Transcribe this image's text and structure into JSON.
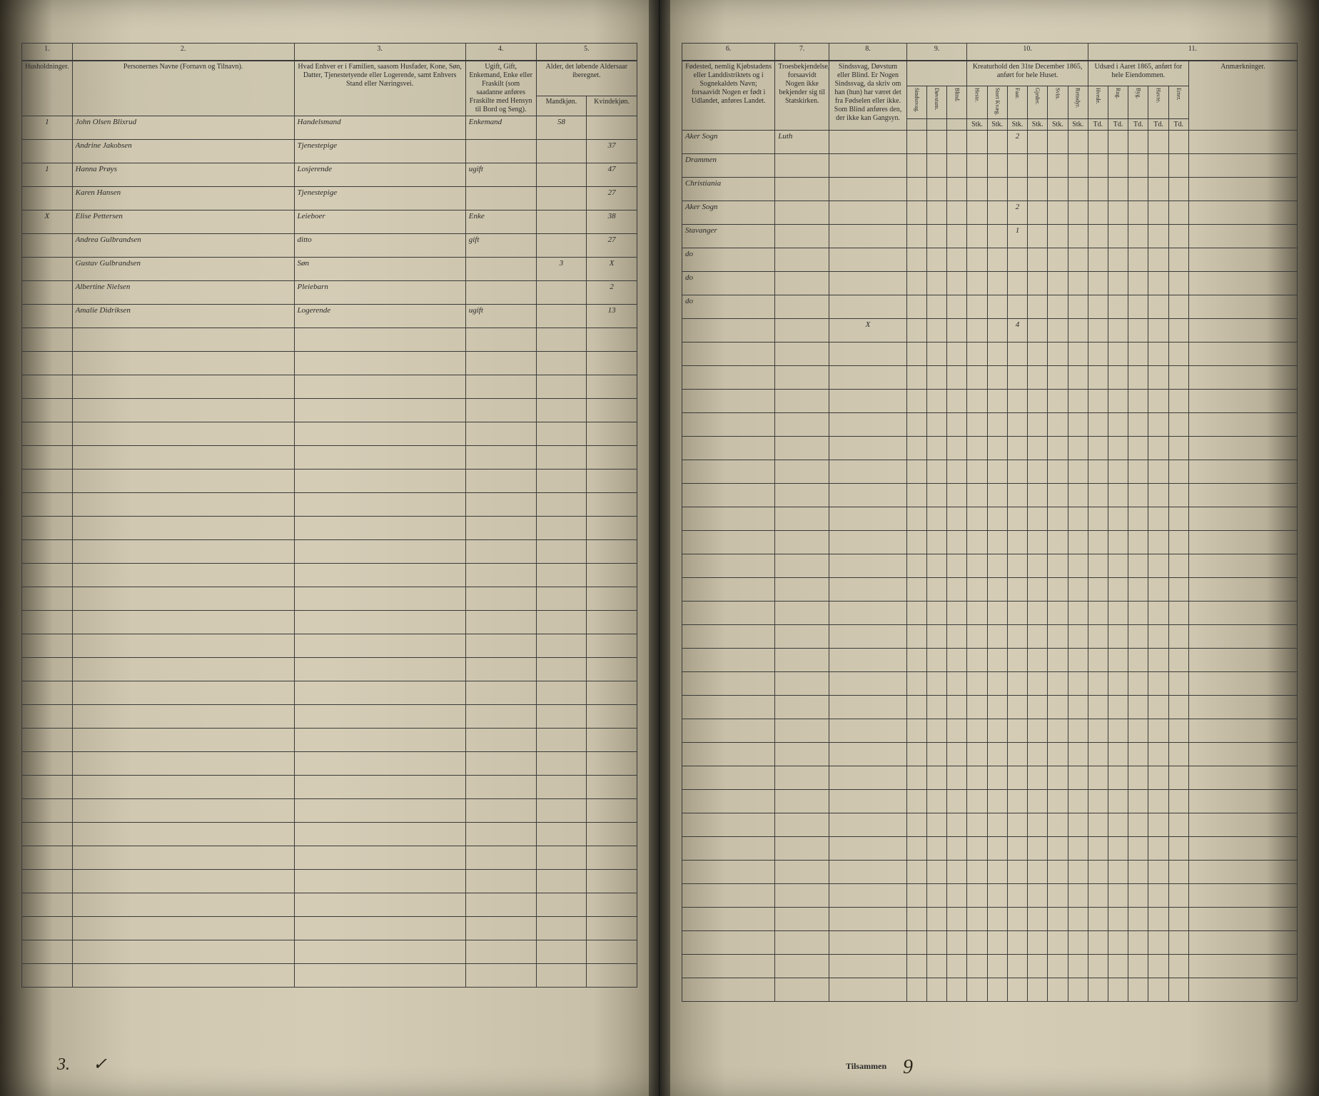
{
  "left": {
    "colnums": [
      "1.",
      "2.",
      "3.",
      "4.",
      "5."
    ],
    "headers": {
      "c1": "Husholdninger.",
      "c2": "Personernes Navne (Fornavn og Tilnavn).",
      "c3": "Hvad Enhver er i Familien, saasom Husfader, Kone, Søn, Datter, Tjenestetyende eller Logerende, samt Enhvers Stand eller Næringsvei.",
      "c4": "Ugift, Gift, Enkemand, Enke eller Fraskilt (som saadanne anføres Fraskilte med Hensyn til Bord og Seng).",
      "c5": "Alder, det løbende Aldersaar iberegnet.",
      "c5a": "Mandkjøn.",
      "c5b": "Kvindekjøn."
    },
    "rows": [
      {
        "hh": "1",
        "name": "John Olsen Blixrud",
        "occ": "Handelsmand",
        "stat": "Enkemand",
        "m": "58",
        "f": ""
      },
      {
        "hh": "",
        "name": "Andrine Jakobsen",
        "occ": "Tjenestepige",
        "stat": "",
        "m": "",
        "f": "37"
      },
      {
        "hh": "1",
        "name": "Hanna Prøys",
        "occ": "Losjerende",
        "stat": "ugift",
        "m": "",
        "f": "47"
      },
      {
        "hh": "",
        "name": "Karen Hansen",
        "occ": "Tjenestepige",
        "stat": "",
        "m": "",
        "f": "27"
      },
      {
        "hh": "X",
        "name": "Elise Pettersen",
        "occ": "Leieboer",
        "stat": "Enke",
        "m": "",
        "f": "38"
      },
      {
        "hh": "",
        "name": "Andrea Gulbrandsen",
        "occ": "ditto",
        "stat": "gift",
        "m": "",
        "f": "27"
      },
      {
        "hh": "",
        "name": "Gustav Gulbrandsen",
        "occ": "Søn",
        "stat": "",
        "m": "3",
        "f": "X"
      },
      {
        "hh": "",
        "name": "Albertine Nielsen",
        "occ": "Pleiebarn",
        "stat": "",
        "m": "",
        "f": "2"
      },
      {
        "hh": "",
        "name": "Amalie Didriksen",
        "occ": "Logerende",
        "stat": "ugift",
        "m": "",
        "f": "13"
      }
    ],
    "footer_num": "3.",
    "footer_mark": "✓"
  },
  "right": {
    "colnums": [
      "6.",
      "7.",
      "8.",
      "9.",
      "10.",
      "11."
    ],
    "headers": {
      "c6": "Fødested, nemlig Kjøbstadens eller Landdistriktets og i Sognekaldets Navn; forsaavidt Nogen er født i Udlandet, anføres Landet.",
      "c7": "Troesbekjendelse, forsaavidt Nogen ikke bekjender sig til Statskirken.",
      "c8": "Sindssvag, Døvstum eller Blind. Er Nogen Sindssvag, da skriv om han (hun) har været det fra Fødselen eller ikke. Som Blind anføres den, der ikke kan Gangsyn.",
      "c9a": "Sindssvag.",
      "c9b": "Døvstum.",
      "c9c": "Blind.",
      "c10_title": "Kreaturhold den 31te December 1865, anført for hele Huset.",
      "c10_sub": [
        "Heste.",
        "Stort Kvæg.",
        "Faar.",
        "Gjeder.",
        "Svin.",
        "Rensdyr."
      ],
      "c10_grain": [
        "Hvede.",
        "Rug.",
        "Byg.",
        "Havre.",
        "Erter."
      ],
      "c11_title": "Udsæd i Aaret 1865, anført for hele Eiendommen.",
      "c11": "Anmærkninger.",
      "unit_stk": "Stk.",
      "unit_td": "Td."
    },
    "rows": [
      {
        "place": "Aker Sogn",
        "rel": "Luth",
        "c": "",
        "v10": [
          "",
          "",
          "2",
          "",
          "",
          ""
        ]
      },
      {
        "place": "Drammen",
        "rel": "",
        "c": "",
        "v10": [
          "",
          "",
          "",
          "",
          "",
          ""
        ]
      },
      {
        "place": "Christiania",
        "rel": "",
        "c": "",
        "v10": [
          "",
          "",
          "",
          "",
          "",
          ""
        ]
      },
      {
        "place": "Aker Sogn",
        "rel": "",
        "c": "",
        "v10": [
          "",
          "",
          "2",
          "",
          "",
          ""
        ]
      },
      {
        "place": "Stavanger",
        "rel": "",
        "c": "",
        "v10": [
          "",
          "",
          "1",
          "",
          "",
          ""
        ]
      },
      {
        "place": "do",
        "rel": "",
        "c": "",
        "v10": [
          "",
          "",
          "",
          "",
          "",
          ""
        ]
      },
      {
        "place": "do",
        "rel": "",
        "c": "",
        "v10": [
          "",
          "",
          "",
          "",
          "",
          ""
        ]
      },
      {
        "place": "do",
        "rel": "",
        "c": "",
        "v10": [
          "",
          "",
          "",
          "",
          "",
          ""
        ]
      },
      {
        "place": "",
        "rel": "",
        "c": "X",
        "v10": [
          "",
          "",
          "4",
          "",
          "",
          ""
        ]
      }
    ],
    "footer_label": "Tilsammen",
    "footer_val": "9"
  },
  "colors": {
    "paper": "#d4ccb5",
    "ink": "#2a2518",
    "rule": "#3a3a3a",
    "dark_edge": "#1a1a1a"
  },
  "blank_rows": 28
}
